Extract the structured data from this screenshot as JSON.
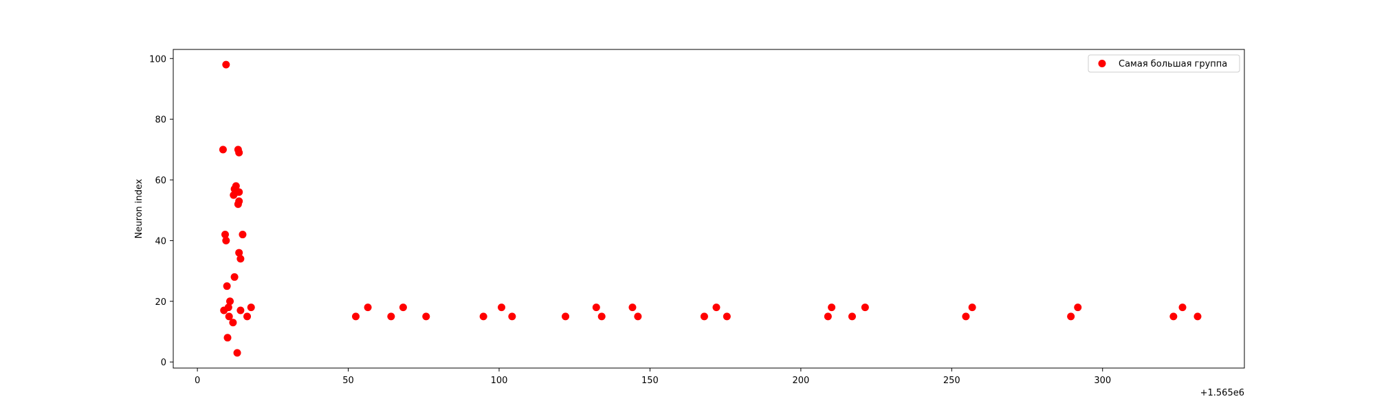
{
  "chart_data": {
    "type": "scatter",
    "title": "",
    "xlabel": "",
    "ylabel": "Neuron index",
    "x_offset_label": "+1.565e6",
    "xlim": [
      -8,
      347
    ],
    "ylim": [
      -2,
      103
    ],
    "xticks": [
      0,
      50,
      100,
      150,
      200,
      250,
      300
    ],
    "yticks": [
      0,
      20,
      40,
      60,
      80,
      100
    ],
    "grid": false,
    "legend_position": "top-right",
    "series": [
      {
        "name": "Самая большая группа",
        "color": "#ff0000",
        "points": [
          [
            9.5,
            98
          ],
          [
            8.5,
            70
          ],
          [
            13.5,
            70
          ],
          [
            13.8,
            69
          ],
          [
            12.8,
            58
          ],
          [
            12.3,
            57
          ],
          [
            13.2,
            56
          ],
          [
            13.8,
            56
          ],
          [
            12.0,
            55
          ],
          [
            13.8,
            53
          ],
          [
            13.5,
            52
          ],
          [
            9.2,
            42
          ],
          [
            15.0,
            42
          ],
          [
            9.5,
            40
          ],
          [
            13.8,
            36
          ],
          [
            14.3,
            34
          ],
          [
            12.3,
            28
          ],
          [
            9.8,
            25
          ],
          [
            10.8,
            20
          ],
          [
            10.3,
            18
          ],
          [
            17.8,
            18
          ],
          [
            8.8,
            17
          ],
          [
            14.3,
            17
          ],
          [
            10.5,
            15
          ],
          [
            16.5,
            15
          ],
          [
            11.8,
            13
          ],
          [
            10.0,
            8
          ],
          [
            13.2,
            3
          ],
          [
            52.5,
            15
          ],
          [
            56.5,
            18
          ],
          [
            64.2,
            15
          ],
          [
            68.2,
            18
          ],
          [
            75.8,
            15
          ],
          [
            94.8,
            15
          ],
          [
            100.8,
            18
          ],
          [
            104.3,
            15
          ],
          [
            122.0,
            15
          ],
          [
            132.2,
            18
          ],
          [
            134.0,
            15
          ],
          [
            144.2,
            18
          ],
          [
            146.0,
            15
          ],
          [
            168.0,
            15
          ],
          [
            172.0,
            18
          ],
          [
            175.5,
            15
          ],
          [
            209.0,
            15
          ],
          [
            210.2,
            18
          ],
          [
            217.0,
            15
          ],
          [
            221.3,
            18
          ],
          [
            254.7,
            15
          ],
          [
            256.8,
            18
          ],
          [
            289.5,
            15
          ],
          [
            291.8,
            18
          ],
          [
            323.5,
            15
          ],
          [
            326.5,
            18
          ],
          [
            331.5,
            15
          ]
        ]
      }
    ]
  }
}
